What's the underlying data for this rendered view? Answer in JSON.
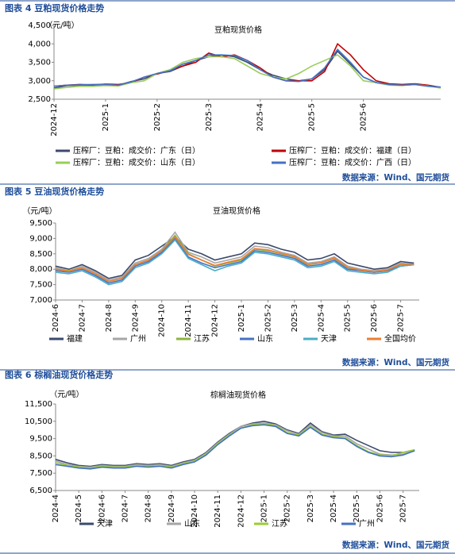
{
  "headings": [
    "图表 4 豆粕现货价格走势",
    "图表 5 豆油现货价格走势",
    "图表 6 棕榈油现货价格走势"
  ],
  "sources": [
    "数据来源：Wind、国元期货",
    "数据来源：Wind、国元期货",
    "数据来源：Wind、国元期货"
  ],
  "chart_data": [
    {
      "type": "line",
      "title": "豆粕现货价格",
      "y_label": "（元/吨）",
      "x": [
        0,
        0.25,
        0.5,
        0.75,
        1,
        1.25,
        1.5,
        1.75,
        2,
        2.25,
        2.5,
        2.75,
        3,
        3.25,
        3.5,
        3.75,
        4,
        4.25,
        4.5,
        4.75,
        5,
        5.25,
        5.5,
        5.75,
        6,
        6.25,
        6.5,
        6.75,
        7,
        7.25,
        7.5
      ],
      "xlim": [
        0,
        7.5
      ],
      "xticks": [
        {
          "value": 0,
          "label": "2024-12"
        },
        {
          "value": 1,
          "label": "2025-1"
        },
        {
          "value": 2,
          "label": "2025-2"
        },
        {
          "value": 3,
          "label": "2025-3"
        },
        {
          "value": 4,
          "label": "2025-4"
        },
        {
          "value": 5,
          "label": "2025-5"
        },
        {
          "value": 6,
          "label": "2025-6"
        }
      ],
      "ylim": [
        2500,
        4500
      ],
      "yticks": [
        {
          "value": 2500,
          "label": "2,500"
        },
        {
          "value": 3000,
          "label": "3,000"
        },
        {
          "value": 3500,
          "label": "3,500"
        },
        {
          "value": 4000,
          "label": "4,000"
        },
        {
          "value": 4500,
          "label": "4,500"
        }
      ],
      "series": [
        {
          "name": "压榨厂：豆粕：成交价：广东（日）",
          "color": "#3d4a6b",
          "values": [
            2800,
            2870,
            2880,
            2880,
            2900,
            2880,
            2980,
            3050,
            3200,
            3250,
            3400,
            3550,
            3650,
            3700,
            3650,
            3500,
            3300,
            3150,
            3050,
            3000,
            3050,
            3300,
            3800,
            3450,
            3100,
            2950,
            2900,
            2880,
            2900,
            2870,
            2820
          ]
        },
        {
          "name": "压榨厂：豆粕：成交价：福建（日）",
          "color": "#c00000",
          "values": [
            2850,
            2880,
            2900,
            2890,
            2910,
            2900,
            2950,
            3100,
            3180,
            3280,
            3400,
            3500,
            3750,
            3650,
            3700,
            3550,
            3350,
            3100,
            3000,
            3000,
            3000,
            3250,
            4000,
            3700,
            3300,
            3000,
            2920,
            2900,
            2920,
            2880,
            2820
          ]
        },
        {
          "name": "压榨厂：豆粕：成交价：山东（日）",
          "color": "#9acd5a",
          "values": [
            2780,
            2820,
            2850,
            2850,
            2870,
            2860,
            2950,
            3000,
            3200,
            3300,
            3500,
            3600,
            3650,
            3650,
            3600,
            3400,
            3200,
            3100,
            3050,
            3200,
            3400,
            3550,
            3700,
            3400,
            3000,
            2950,
            2880,
            2870,
            2900,
            2860,
            2800
          ]
        },
        {
          "name": "压榨厂：豆粕：成交价：广西（日）",
          "color": "#4472c4",
          "values": [
            2850,
            2880,
            2890,
            2900,
            2900,
            2880,
            2970,
            3100,
            3200,
            3270,
            3450,
            3550,
            3700,
            3700,
            3680,
            3550,
            3300,
            3100,
            3000,
            2980,
            3050,
            3350,
            3850,
            3500,
            3100,
            2950,
            2900,
            2880,
            2900,
            2850,
            2830
          ]
        }
      ]
    },
    {
      "type": "line",
      "title": "豆油现货价格",
      "y_label": "（元/吨）",
      "x": [
        0,
        0.5,
        1,
        1.5,
        2,
        2.5,
        3,
        3.5,
        4,
        4.5,
        5,
        5.5,
        6,
        6.5,
        7,
        7.5,
        8,
        8.5,
        9,
        9.5,
        10,
        10.5,
        11,
        11.5,
        12,
        12.5,
        13,
        13.5
      ],
      "xlim": [
        0,
        13.7
      ],
      "xticks": [
        {
          "value": 0,
          "label": "2024-6"
        },
        {
          "value": 1,
          "label": "2024-7"
        },
        {
          "value": 2,
          "label": "2024-8"
        },
        {
          "value": 3,
          "label": "2024-9"
        },
        {
          "value": 4,
          "label": "2024-10"
        },
        {
          "value": 5,
          "label": "2024-11"
        },
        {
          "value": 6,
          "label": "2024-12"
        },
        {
          "value": 7,
          "label": "2025-1"
        },
        {
          "value": 8,
          "label": "2025-2"
        },
        {
          "value": 9,
          "label": "2025-3"
        },
        {
          "value": 10,
          "label": "2025-4"
        },
        {
          "value": 11,
          "label": "2025-5"
        },
        {
          "value": 12,
          "label": "2025-6"
        },
        {
          "value": 13,
          "label": "2025-7"
        }
      ],
      "ylim": [
        7000,
        9500
      ],
      "yticks": [
        {
          "value": 7000,
          "label": "7,000"
        },
        {
          "value": 7500,
          "label": "7,500"
        },
        {
          "value": 8000,
          "label": "8,000"
        },
        {
          "value": 8500,
          "label": "8,500"
        },
        {
          "value": 9000,
          "label": "9,000"
        },
        {
          "value": 9500,
          "label": "9,500"
        }
      ],
      "series": [
        {
          "name": "福建",
          "color": "#3b4a6b",
          "values": [
            8100,
            8000,
            8150,
            7950,
            7700,
            7800,
            8300,
            8450,
            8750,
            9050,
            8650,
            8500,
            8300,
            8400,
            8500,
            8850,
            8800,
            8650,
            8550,
            8300,
            8350,
            8500,
            8200,
            8100,
            8000,
            8050,
            8250,
            8200
          ]
        },
        {
          "name": "广州",
          "color": "#a6a6a6",
          "values": [
            8050,
            7950,
            8100,
            7900,
            7650,
            7750,
            8200,
            8350,
            8650,
            9200,
            8550,
            8400,
            8200,
            8300,
            8400,
            8750,
            8700,
            8550,
            8450,
            8200,
            8250,
            8400,
            8100,
            8000,
            7950,
            8000,
            8200,
            8150
          ]
        },
        {
          "name": "江苏",
          "color": "#8db43e",
          "values": [
            8000,
            7950,
            8050,
            7850,
            7600,
            7700,
            8150,
            8300,
            8600,
            9100,
            8500,
            8300,
            8100,
            8200,
            8300,
            8650,
            8600,
            8500,
            8400,
            8150,
            8200,
            8350,
            8050,
            7950,
            7900,
            7950,
            8150,
            8150
          ]
        },
        {
          "name": "山东",
          "color": "#4472c4",
          "values": [
            7950,
            7900,
            8000,
            7800,
            7550,
            7650,
            8100,
            8250,
            8550,
            9000,
            8400,
            8200,
            8050,
            8150,
            8250,
            8600,
            8550,
            8450,
            8350,
            8100,
            8150,
            8300,
            8000,
            7950,
            7900,
            7950,
            8100,
            8150
          ]
        },
        {
          "name": "天津",
          "color": "#4bacc6",
          "values": [
            7900,
            7850,
            7950,
            7750,
            7500,
            7600,
            8050,
            8200,
            8500,
            8950,
            8350,
            8150,
            7950,
            8100,
            8200,
            8550,
            8500,
            8400,
            8300,
            8050,
            8100,
            8250,
            7950,
            7900,
            7850,
            7900,
            8100,
            8150
          ]
        },
        {
          "name": "全国均价",
          "color": "#ed7d31",
          "values": [
            8000,
            7930,
            8050,
            7850,
            7600,
            7700,
            8150,
            8300,
            8600,
            9050,
            8480,
            8300,
            8120,
            8230,
            8330,
            8670,
            8630,
            8510,
            8410,
            8160,
            8210,
            8360,
            8060,
            7970,
            7920,
            7970,
            8160,
            8170
          ]
        }
      ]
    },
    {
      "type": "line",
      "title": "棕榈油现货价格",
      "y_label": "（元/吨）",
      "x": [
        0,
        0.5,
        1,
        1.5,
        2,
        2.5,
        3,
        3.5,
        4,
        4.5,
        5,
        5.5,
        6,
        6.5,
        7,
        7.5,
        8,
        8.5,
        9,
        9.5,
        10,
        10.5,
        11,
        11.5,
        12,
        12.5,
        13,
        13.5,
        14,
        14.5,
        15,
        15.5
      ],
      "xlim": [
        0,
        15.7
      ],
      "xticks": [
        {
          "value": 0,
          "label": "2024-4"
        },
        {
          "value": 1,
          "label": "2024-5"
        },
        {
          "value": 2,
          "label": "2024-6"
        },
        {
          "value": 3,
          "label": "2024-7"
        },
        {
          "value": 4,
          "label": "2024-8"
        },
        {
          "value": 5,
          "label": "2024-9"
        },
        {
          "value": 6,
          "label": "2024-10"
        },
        {
          "value": 7,
          "label": "2024-11"
        },
        {
          "value": 8,
          "label": "2024-12"
        },
        {
          "value": 9,
          "label": "2025-1"
        },
        {
          "value": 10,
          "label": "2025-2"
        },
        {
          "value": 11,
          "label": "2025-3"
        },
        {
          "value": 12,
          "label": "2025-4"
        },
        {
          "value": 13,
          "label": "2025-5"
        },
        {
          "value": 14,
          "label": "2025-6"
        },
        {
          "value": 15,
          "label": "2025-7"
        }
      ],
      "ylim": [
        6500,
        11500
      ],
      "yticks": [
        {
          "value": 6500,
          "label": "6,500"
        },
        {
          "value": 7500,
          "label": "7,500"
        },
        {
          "value": 8500,
          "label": "8,500"
        },
        {
          "value": 9500,
          "label": "9,500"
        },
        {
          "value": 10500,
          "label": "10,500"
        },
        {
          "value": 11500,
          "label": "11,500"
        }
      ],
      "series": [
        {
          "name": "天津",
          "color": "#3b4a6b",
          "values": [
            8300,
            8100,
            7950,
            7900,
            8000,
            7950,
            7950,
            8050,
            8000,
            8050,
            7950,
            8150,
            8300,
            8700,
            9300,
            9800,
            10200,
            10400,
            10500,
            10350,
            10000,
            9800,
            10400,
            9900,
            9700,
            9750,
            9400,
            9100,
            8800,
            8700,
            8700,
            8850
          ]
        },
        {
          "name": "山东",
          "color": "#a6a6a6",
          "values": [
            8200,
            8000,
            7900,
            7850,
            7950,
            7900,
            7900,
            8000,
            7950,
            8000,
            7900,
            8100,
            8250,
            8650,
            9250,
            9750,
            10200,
            10350,
            10400,
            10300,
            9950,
            9750,
            10300,
            9850,
            9650,
            9650,
            9200,
            8900,
            8600,
            8550,
            8600,
            8800
          ]
        },
        {
          "name": "江苏",
          "color": "#9acd32",
          "values": [
            8100,
            7950,
            7850,
            7800,
            7900,
            7850,
            7850,
            7950,
            7900,
            7950,
            7850,
            8050,
            8200,
            8600,
            9200,
            9700,
            10100,
            10300,
            10350,
            10250,
            9850,
            9700,
            10200,
            9750,
            9600,
            9550,
            9100,
            8750,
            8550,
            8500,
            8700,
            8850
          ]
        },
        {
          "name": "广州",
          "color": "#4472c4",
          "values": [
            8000,
            7900,
            7800,
            7750,
            7850,
            7800,
            7800,
            7900,
            7850,
            7900,
            7800,
            8000,
            8150,
            8550,
            9150,
            9650,
            10100,
            10250,
            10300,
            10200,
            9800,
            9650,
            10150,
            9700,
            9550,
            9500,
            9050,
            8700,
            8500,
            8450,
            8550,
            8800
          ]
        }
      ]
    }
  ]
}
